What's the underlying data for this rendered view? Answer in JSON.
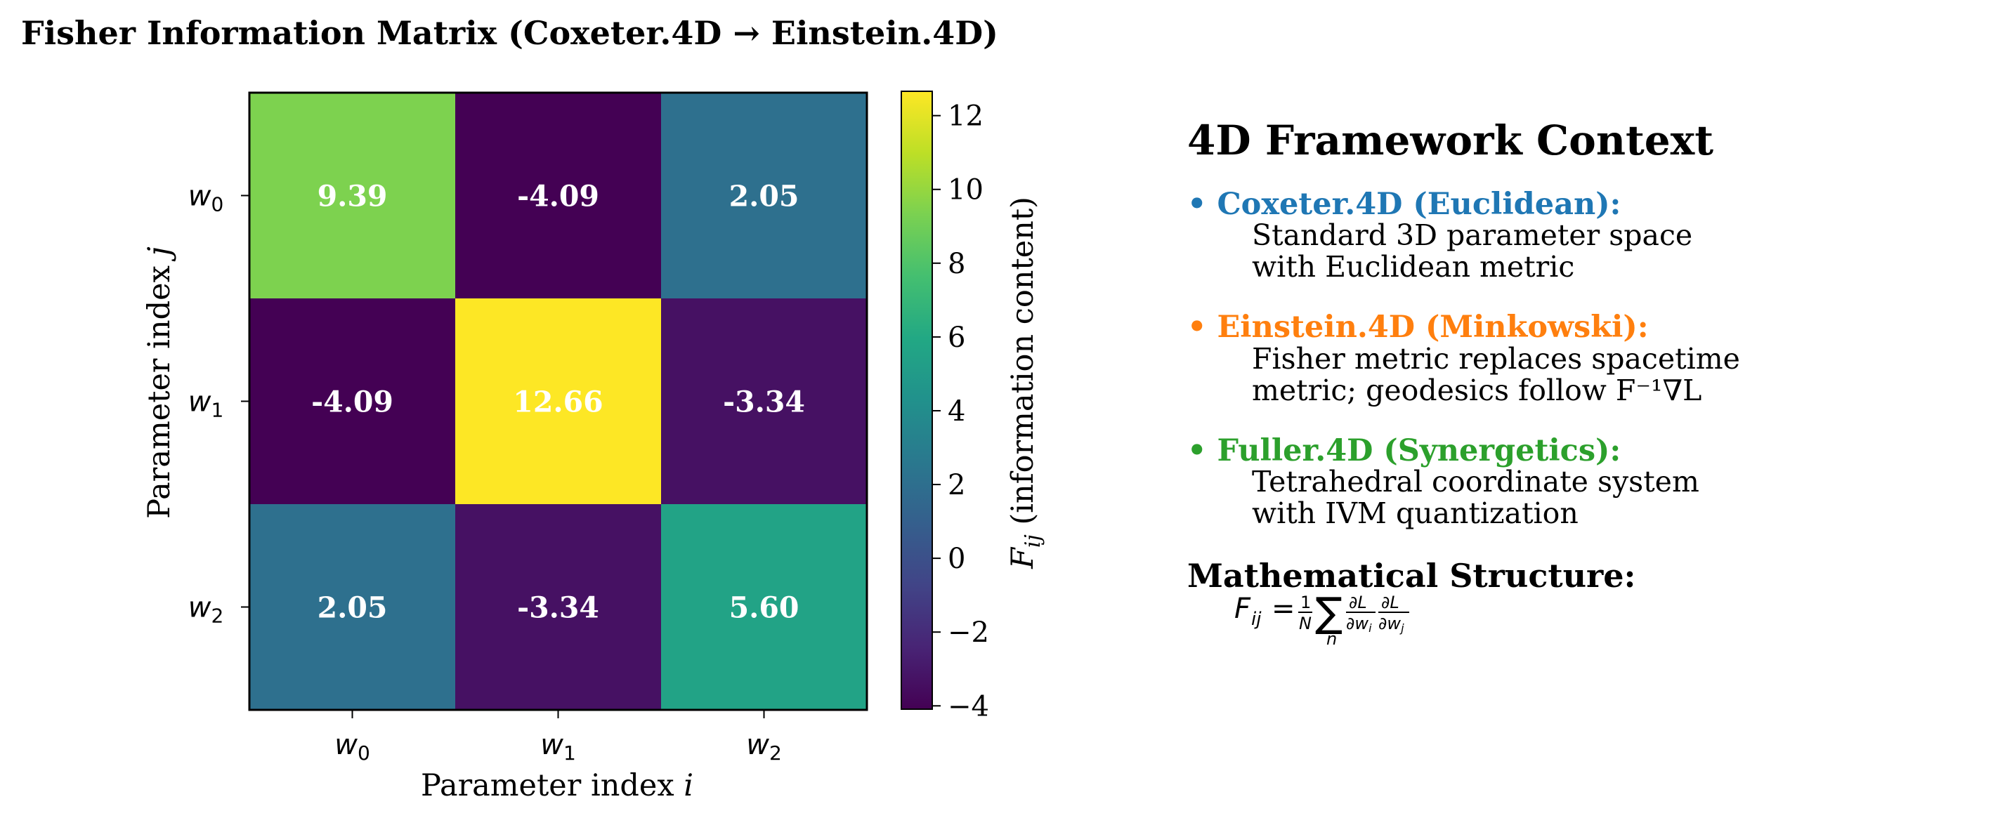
{
  "figure_title": "Fisher Information Matrix (Coxeter.4D → Einstein.4D)",
  "chart_data": {
    "type": "heatmap",
    "title": "Fisher Information Matrix (Coxeter.4D → Einstein.4D)",
    "xlabel": "Parameter index i",
    "ylabel": "Parameter index j",
    "x_categories": [
      "w0",
      "w1",
      "w2"
    ],
    "y_categories": [
      "w0",
      "w1",
      "w2"
    ],
    "values": [
      [
        9.39,
        -4.09,
        2.05
      ],
      [
        -4.09,
        12.66,
        -3.34
      ],
      [
        2.05,
        -3.34,
        5.6
      ]
    ],
    "cell_labels": [
      [
        "9.39",
        "-4.09",
        "2.05"
      ],
      [
        "-4.09",
        "12.66",
        "-3.34"
      ],
      [
        "2.05",
        "-3.34",
        "5.60"
      ]
    ],
    "colormap": "viridis",
    "colorbar": {
      "label": "F_ij (information content)",
      "range": [
        -4.09,
        12.66
      ],
      "ticks": [
        -4,
        -2,
        0,
        2,
        4,
        6,
        8,
        10,
        12
      ],
      "tick_labels": [
        "−4",
        "−2",
        "0",
        "2",
        "4",
        "6",
        "8",
        "10",
        "12"
      ]
    }
  },
  "context": {
    "title": "4D Framework Context",
    "frameworks": [
      {
        "heading": "• Coxeter.4D (Euclidean):",
        "color": "#1f77b4",
        "lines": [
          "Standard 3D parameter space",
          "with Euclidean metric"
        ]
      },
      {
        "heading": "• Einstein.4D (Minkowski):",
        "color": "#ff7f0e",
        "lines": [
          "Fisher metric replaces spacetime",
          "metric; geodesics follow F⁻¹∇L"
        ]
      },
      {
        "heading": "• Fuller.4D (Synergetics):",
        "color": "#2ca02c",
        "lines": [
          "Tetrahedral coordinate system",
          "with IVM quantization"
        ]
      }
    ],
    "math_heading": "Mathematical Structure:",
    "formula": "F_ij = 1/N Σ_n ∂L/∂w_i ∂L/∂w_j"
  }
}
